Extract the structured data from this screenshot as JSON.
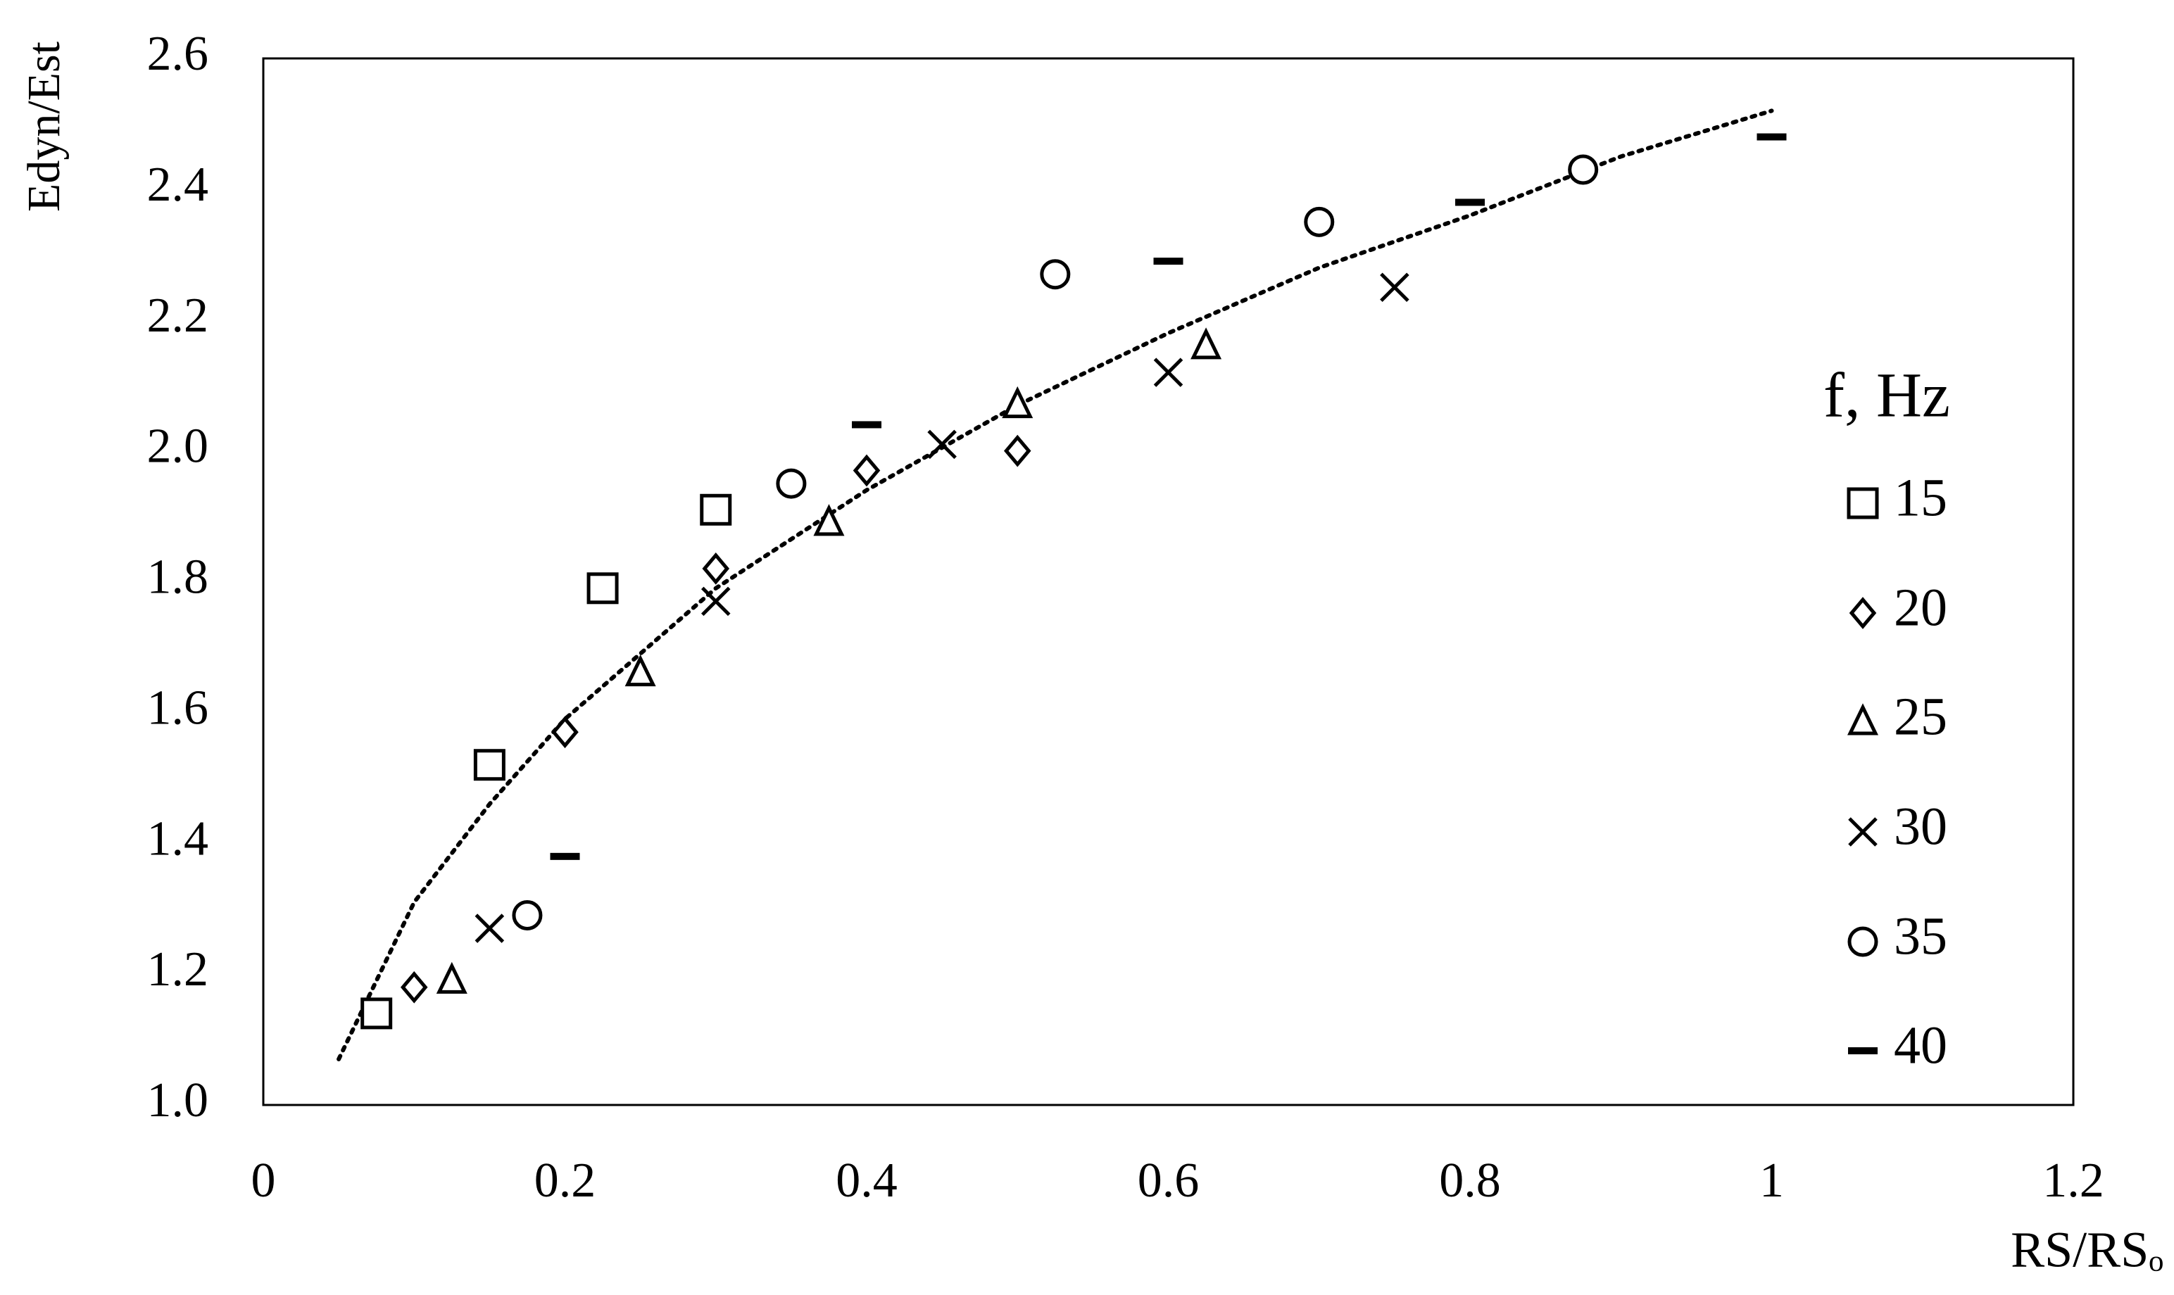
{
  "chart_data": {
    "type": "scatter",
    "x_label": "RS/RSₒ",
    "y_label": "Edyn/Est",
    "legend_title": "f, Hz",
    "legend": "right",
    "grid": false,
    "xlim": [
      0,
      1.2
    ],
    "xticks": [
      0,
      0.2,
      0.4,
      0.6,
      0.8,
      1,
      1.2
    ],
    "ylim": [
      1.0,
      2.6
    ],
    "yticks": [
      {
        "value": 1.0,
        "label": "1.0"
      },
      1.2,
      1.4,
      1.6,
      1.8,
      {
        "value": 2.0,
        "label": "2.0"
      },
      2.2,
      2.4,
      2.6
    ],
    "series": [
      {
        "name": "15",
        "marker": "square",
        "color": "#000000",
        "x": [
          0.075,
          0.15,
          0.225,
          0.3
        ],
        "values": [
          1.14,
          1.52,
          1.79,
          1.91
        ]
      },
      {
        "name": "20",
        "marker": "diamond",
        "color": "#000000",
        "x": [
          0.1,
          0.2,
          0.3,
          0.4,
          0.5
        ],
        "values": [
          1.18,
          1.57,
          1.82,
          1.97,
          2.0
        ]
      },
      {
        "name": "25",
        "marker": "triangle",
        "color": "#000000",
        "x": [
          0.125,
          0.25,
          0.375,
          0.5,
          0.625
        ],
        "values": [
          1.19,
          1.66,
          1.89,
          2.07,
          2.16
        ]
      },
      {
        "name": "30",
        "marker": "cross",
        "color": "#000000",
        "x": [
          0.15,
          0.3,
          0.45,
          0.6,
          0.75
        ],
        "values": [
          1.27,
          1.77,
          2.01,
          2.12,
          2.25
        ]
      },
      {
        "name": "35",
        "marker": "circle",
        "color": "#000000",
        "x": [
          0.175,
          0.35,
          0.525,
          0.7,
          0.875
        ],
        "values": [
          1.29,
          1.95,
          2.27,
          2.35,
          2.43
        ]
      },
      {
        "name": "40",
        "marker": "dash",
        "color": "#000000",
        "x": [
          0.2,
          0.4,
          0.6,
          0.8,
          1.0
        ],
        "values": [
          1.38,
          2.04,
          2.29,
          2.38,
          2.48
        ]
      }
    ],
    "trendline": {
      "style": "dotted",
      "color": "#000000",
      "x": [
        0.05,
        0.1,
        0.15,
        0.2,
        0.3,
        0.4,
        0.5,
        0.6,
        0.7,
        0.8,
        0.9,
        1.0
      ],
      "values": [
        1.07,
        1.31,
        1.46,
        1.59,
        1.79,
        1.94,
        2.07,
        2.18,
        2.28,
        2.36,
        2.45,
        2.52
      ]
    }
  }
}
